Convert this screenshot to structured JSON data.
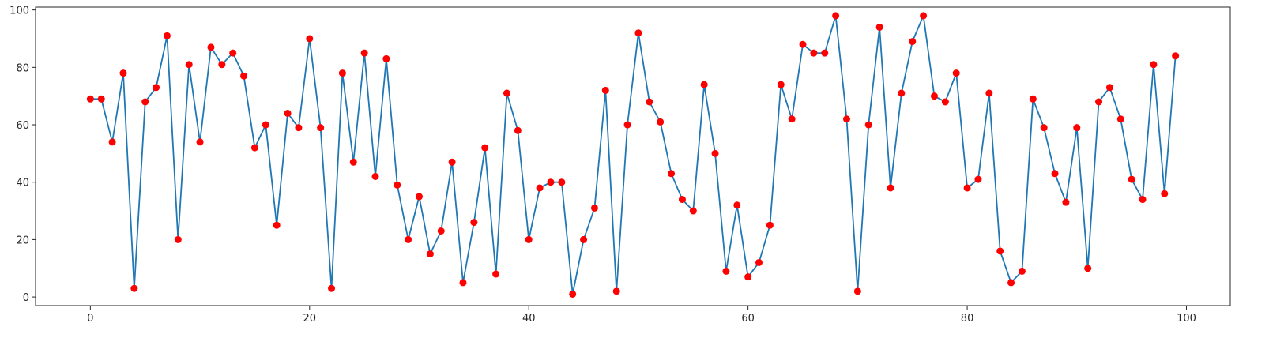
{
  "chart_data": {
    "type": "line",
    "title": "",
    "xlabel": "",
    "ylabel": "",
    "xlim": [
      -5,
      104
    ],
    "ylim": [
      -3,
      101
    ],
    "grid": false,
    "x_ticks": [
      0,
      20,
      40,
      60,
      80,
      100
    ],
    "y_ticks": [
      0,
      20,
      40,
      60,
      80,
      100
    ],
    "x_tick_labels": [
      "0",
      "20",
      "40",
      "60",
      "80",
      "100"
    ],
    "y_tick_labels": [
      "0",
      "20",
      "40",
      "60",
      "80",
      "100"
    ],
    "line_color": "#1f77b4",
    "marker_color": "#ff0000",
    "series": [
      {
        "values": [
          69,
          69,
          54,
          78,
          3,
          68,
          73,
          91,
          20,
          81,
          54,
          87,
          81,
          85,
          77,
          52,
          60,
          25,
          64,
          59,
          90,
          59,
          3,
          78,
          47,
          85,
          42,
          83,
          39,
          20,
          35,
          15,
          23,
          47,
          5,
          26,
          52,
          8,
          71,
          58,
          20,
          38,
          40,
          40,
          1,
          20,
          31,
          72,
          2,
          60,
          92,
          68,
          61,
          43,
          34,
          30,
          74,
          50,
          9,
          32,
          7,
          12,
          25,
          74,
          62,
          88,
          85,
          85,
          98,
          62,
          2,
          60,
          94,
          38,
          71,
          89,
          98,
          70,
          68,
          78,
          38,
          41,
          71,
          16,
          5,
          9,
          69,
          59,
          43,
          33,
          59,
          10,
          68,
          73,
          62,
          41,
          34,
          81,
          36,
          84
        ]
      }
    ]
  }
}
